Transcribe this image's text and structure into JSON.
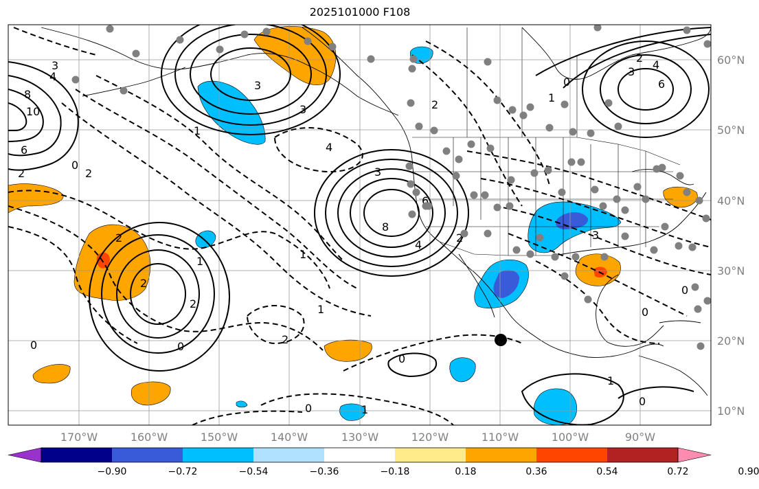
{
  "title": "2025101000 F108",
  "map": {
    "projection": "PlateCarree",
    "lon_range": [
      -180,
      -80
    ],
    "lat_range": [
      7,
      64
    ],
    "grid": true,
    "lon_labels": [
      "170°W",
      "160°W",
      "150°W",
      "140°W",
      "130°W",
      "120°W",
      "110°W",
      "100°W",
      "90°W"
    ],
    "lat_labels": [
      "60°N",
      "50°N",
      "40°N",
      "30°N",
      "20°N",
      "10°N"
    ],
    "contour_labels": [
      "3",
      "4",
      "3",
      "8",
      "10",
      "6",
      "2",
      "0",
      "2",
      "3",
      "4",
      "3",
      "2",
      "1",
      "0",
      "8",
      "3",
      "6",
      "4",
      "2",
      "1",
      "2",
      "1",
      "2",
      "0",
      "1",
      "2",
      "0",
      "0",
      "1",
      "2",
      "1",
      "0",
      "6",
      "4",
      "2",
      "3",
      "0",
      "1",
      "0",
      "0"
    ],
    "colors": {
      "land_outline": "#000000",
      "positive": "#ffa500",
      "negative": "#00bfff",
      "strong_negative": "#3a5bd9",
      "strong_positive": "#ff4500",
      "station_dot": "#808080",
      "marker": "#000000"
    }
  },
  "colorbar": {
    "colors": [
      "#9932cc",
      "#00008b",
      "#3a5bd9",
      "#00bfff",
      "#b0e2ff",
      "#ffffff",
      "#ffeb8a",
      "#ffa500",
      "#ff4500",
      "#b22222",
      "#ff8cb0"
    ],
    "tick_labels": [
      "−0.90",
      "−0.72",
      "−0.54",
      "−0.36",
      "−0.18",
      "0.18",
      "0.36",
      "0.54",
      "0.72",
      "0.90"
    ],
    "extend": "both"
  }
}
